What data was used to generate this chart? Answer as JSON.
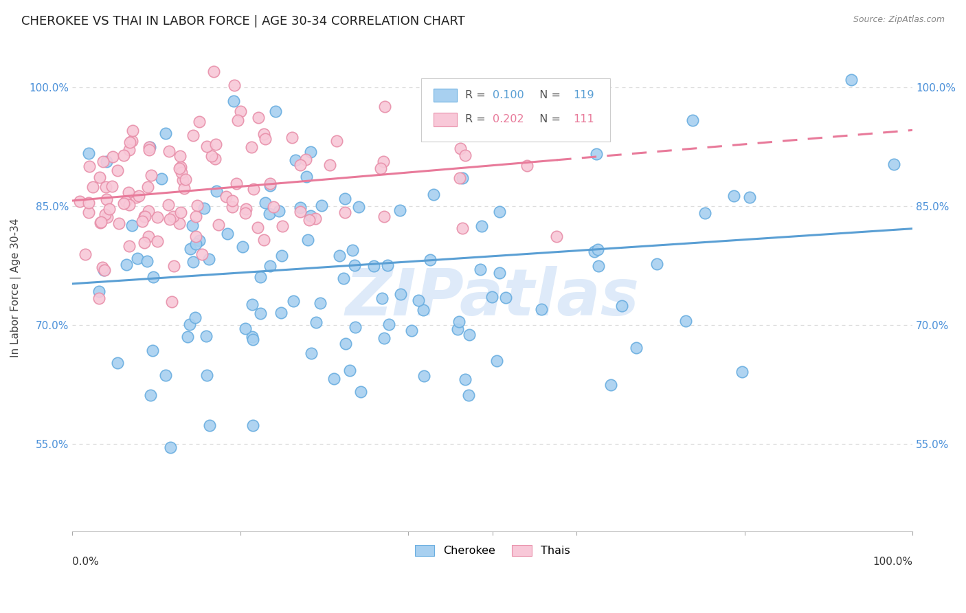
{
  "title": "CHEROKEE VS THAI IN LABOR FORCE | AGE 30-34 CORRELATION CHART",
  "source": "Source: ZipAtlas.com",
  "ylabel": "In Labor Force | Age 30-34",
  "ytick_labels": [
    "55.0%",
    "70.0%",
    "85.0%",
    "100.0%"
  ],
  "ytick_vals": [
    0.55,
    0.7,
    0.85,
    1.0
  ],
  "cherokee_color": "#a8d0f0",
  "cherokee_edge": "#6aaee0",
  "thai_color": "#f8c8d8",
  "thai_edge": "#e890aa",
  "trendline_cherokee": "#5a9fd4",
  "trendline_thai": "#e87a9a",
  "watermark": "ZIPatlas",
  "watermark_color": "#c8ddf5",
  "cherokee_R": 0.1,
  "cherokee_N": 119,
  "thai_R": 0.202,
  "thai_N": 111,
  "xlim": [
    0.0,
    1.0
  ],
  "ylim": [
    0.44,
    1.055
  ],
  "background_color": "#ffffff",
  "grid_color": "#dddddd",
  "title_fontsize": 13,
  "legend_fontsize": 11.5,
  "cherokee_seed": 42,
  "thai_seed": 15
}
